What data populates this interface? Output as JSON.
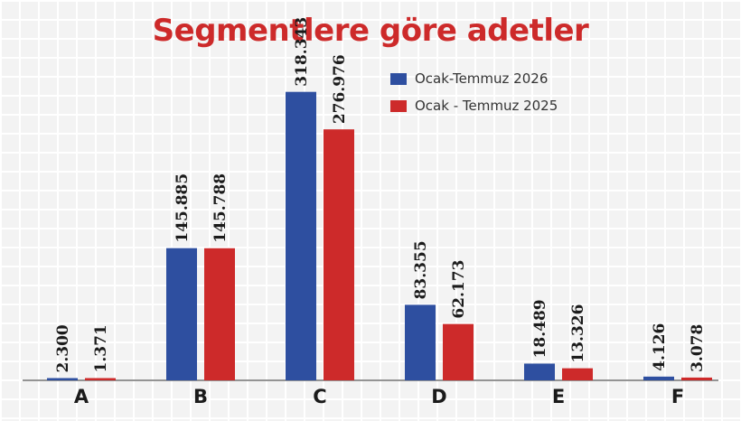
{
  "chart_data": {
    "type": "bar",
    "title": "Segmentlere göre adetler",
    "categories": [
      "A",
      "B",
      "C",
      "D",
      "E",
      "F"
    ],
    "series": [
      {
        "name": "Ocak-Temmuz 2026",
        "color": "#2e4fa0",
        "values": [
          2300,
          145885,
          318343,
          83355,
          18489,
          4126
        ],
        "labels": [
          "2.300",
          "145.885",
          "318.343",
          "83.355",
          "18.489",
          "4.126"
        ]
      },
      {
        "name": "Ocak - Temmuz 2025",
        "color": "#cd2a2a",
        "values": [
          1371,
          145788,
          276976,
          62173,
          13326,
          3078
        ],
        "labels": [
          "1.371",
          "145.788",
          "276.976",
          "62.173",
          "13.326",
          "3.078"
        ]
      }
    ],
    "xlabel": "",
    "ylabel": "",
    "ylim": [
      0,
      330000
    ],
    "grid": true,
    "legend_position": "top-right"
  }
}
